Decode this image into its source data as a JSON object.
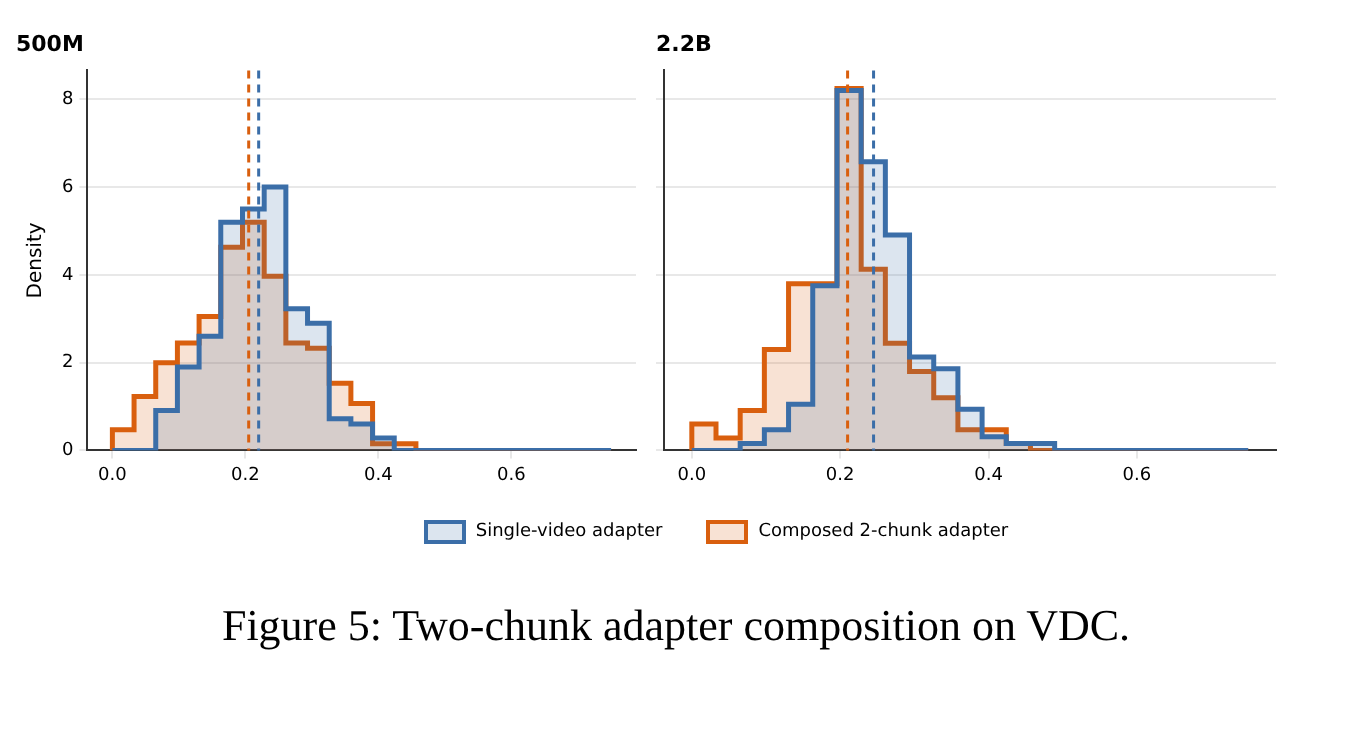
{
  "chart_data": [
    {
      "type": "histogram",
      "title": "500M",
      "ylabel": "Density",
      "legend": "bottom",
      "grid": "y",
      "bins": [
        0,
        0.0326,
        0.0652,
        0.0978,
        0.1304,
        0.163,
        0.1957,
        0.2283,
        0.2609,
        0.2935,
        0.3261,
        0.3587,
        0.3913,
        0.4239,
        0.4565,
        0.4891,
        0.5217,
        0.5543,
        0.587,
        0.6196,
        0.6522,
        0.6848,
        0.7174,
        0.75
      ],
      "series": [
        {
          "name": "Single-video adapter",
          "color": "#3b6ea8",
          "values": [
            0,
            0,
            0.91,
            1.9,
            2.6,
            5.2,
            5.5,
            6.0,
            3.23,
            2.9,
            0.72,
            0.6,
            0.28,
            0,
            0,
            0,
            0,
            0,
            0,
            0,
            0,
            0,
            0
          ]
        },
        {
          "name": "Composed 2-chunk adapter",
          "color": "#d95f0e",
          "values": [
            0.47,
            1.23,
            2.0,
            2.45,
            3.05,
            4.63,
            5.2,
            3.97,
            2.45,
            2.33,
            1.53,
            1.07,
            0.15,
            0.15,
            0,
            0,
            0,
            0,
            0,
            0,
            0,
            0,
            0
          ]
        }
      ],
      "xlim": [
        -0.0375,
        0.7875
      ],
      "xticks": [
        {
          "value": 0,
          "label": "0.0"
        },
        {
          "value": 0.2,
          "label": "0.2"
        },
        {
          "value": 0.4,
          "label": "0.4"
        },
        {
          "value": 0.6,
          "label": "0.6"
        }
      ],
      "ylim": [
        0,
        8.66
      ],
      "yticks": [
        0,
        2,
        4,
        6,
        8
      ],
      "ref_lines": [
        {
          "axis": "x",
          "value": 0.22,
          "color": "#3b6ea8",
          "line_style": "dashed"
        },
        {
          "axis": "x",
          "value": 0.205,
          "color": "#d95f0e",
          "line_style": "dashed"
        }
      ],
      "annotations": [
        "Figure 5: Two-chunk adapter composition on VDC."
      ]
    },
    {
      "type": "histogram",
      "title": "2.2B",
      "grid": "y",
      "tick_labels": "x",
      "bins": [
        0,
        0.0326,
        0.0652,
        0.0978,
        0.1304,
        0.163,
        0.1957,
        0.2283,
        0.2609,
        0.2935,
        0.3261,
        0.3587,
        0.3913,
        0.4239,
        0.4565,
        0.4891,
        0.5217,
        0.5543,
        0.587,
        0.6196,
        0.6522,
        0.6848,
        0.7174,
        0.75
      ],
      "series": [
        {
          "color": "#3b6ea8",
          "values": [
            0,
            0,
            0.16,
            0.47,
            1.05,
            3.75,
            8.2,
            6.58,
            4.91,
            2.13,
            1.86,
            0.94,
            0.31,
            0.16,
            0.16,
            0,
            0,
            0,
            0,
            0,
            0,
            0,
            0
          ]
        },
        {
          "color": "#d95f0e",
          "values": [
            0.6,
            0.28,
            0.91,
            2.3,
            3.8,
            3.8,
            8.25,
            4.13,
            2.44,
            1.8,
            1.2,
            0.47,
            0.47,
            0.16,
            0,
            0,
            0,
            0,
            0,
            0,
            0,
            0,
            0
          ]
        }
      ],
      "xlim": [
        -0.0375,
        0.7875
      ],
      "xticks": [
        {
          "value": 0,
          "label": "0.0"
        },
        {
          "value": 0.2,
          "label": "0.2"
        },
        {
          "value": 0.4,
          "label": "0.4"
        },
        {
          "value": 0.6,
          "label": "0.6"
        }
      ],
      "ylim": [
        0,
        8.66
      ],
      "yticks": [
        0,
        2,
        4,
        6,
        8
      ],
      "ref_lines": [
        {
          "axis": "x",
          "value": 0.245,
          "color": "#3b6ea8",
          "line_style": "dashed"
        },
        {
          "axis": "x",
          "value": 0.21,
          "color": "#d95f0e",
          "line_style": "dashed"
        }
      ]
    }
  ]
}
